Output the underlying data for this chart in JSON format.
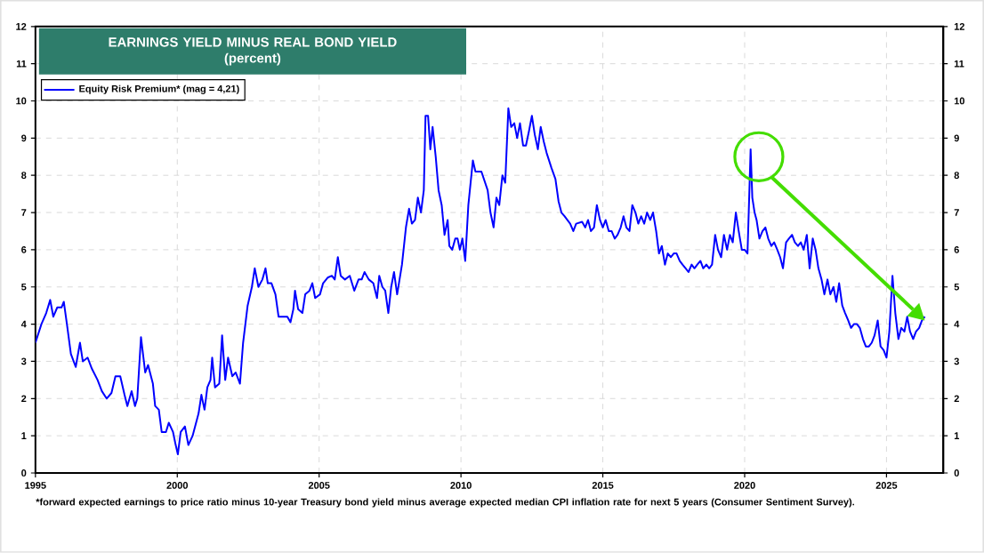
{
  "chart_data": {
    "type": "line",
    "title": "EARNINGS YIELD MINUS REAL BOND YIELD",
    "subtitle": "(percent)",
    "annotations": [
      "*forward expected earnings to price ratio minus 10-year Treasury bond yield minus average expected median CPI inflation rate for next 5 years (Consumer Sentiment Survey)."
    ],
    "xlim": [
      1995,
      2027
    ],
    "xticks": [
      1995,
      2000,
      2005,
      2010,
      2015,
      2020,
      2025
    ],
    "ylim": [
      0,
      12
    ],
    "yticks": [
      0,
      1,
      2,
      3,
      4,
      5,
      6,
      7,
      8,
      9,
      10,
      11,
      12
    ],
    "y2lim": [
      0,
      12
    ],
    "y2ticks": [
      0,
      1,
      2,
      3,
      4,
      5,
      6,
      7,
      8,
      9,
      10,
      11,
      12
    ],
    "grid": true,
    "legend": "top left",
    "marker": "none",
    "line_style": "solid",
    "series": [
      {
        "name": "Equity Risk Premium* (mag = 4,21)",
        "color": "#0000ff",
        "x": [
          1995.0,
          1995.21,
          1995.38,
          1995.52,
          1995.63,
          1995.77,
          1995.92,
          1996.0,
          1996.11,
          1996.25,
          1996.42,
          1996.57,
          1996.67,
          1996.84,
          1996.99,
          1997.19,
          1997.34,
          1997.51,
          1997.68,
          1997.82,
          1997.99,
          1998.14,
          1998.24,
          1998.39,
          1998.51,
          1998.59,
          1998.72,
          1998.87,
          1998.97,
          1999.14,
          1999.22,
          1999.35,
          1999.45,
          1999.6,
          1999.7,
          1999.85,
          1999.93,
          2000.02,
          2000.12,
          2000.27,
          2000.39,
          2000.54,
          2000.75,
          2000.85,
          2000.96,
          2001.06,
          2001.17,
          2001.23,
          2001.33,
          2001.48,
          2001.58,
          2001.69,
          2001.79,
          2001.94,
          2002.06,
          2002.21,
          2002.32,
          2002.48,
          2002.63,
          2002.73,
          2002.86,
          2003.0,
          2003.11,
          2003.19,
          2003.32,
          2003.46,
          2003.57,
          2003.74,
          2003.88,
          2003.99,
          2004.09,
          2004.15,
          2004.26,
          2004.41,
          2004.51,
          2004.66,
          2004.76,
          2004.86,
          2005.03,
          2005.14,
          2005.3,
          2005.45,
          2005.55,
          2005.66,
          2005.76,
          2005.91,
          2006.08,
          2006.24,
          2006.39,
          2006.5,
          2006.6,
          2006.75,
          2006.91,
          2007.04,
          2007.12,
          2007.23,
          2007.33,
          2007.44,
          2007.54,
          2007.64,
          2007.75,
          2007.92,
          2008.06,
          2008.17,
          2008.27,
          2008.38,
          2008.48,
          2008.59,
          2008.69,
          2008.75,
          2008.84,
          2008.92,
          2009.0,
          2009.11,
          2009.21,
          2009.32,
          2009.42,
          2009.53,
          2009.59,
          2009.69,
          2009.8,
          2009.88,
          2009.96,
          2010.05,
          2010.15,
          2010.26,
          2010.42,
          2010.51,
          2010.72,
          2010.94,
          2011.04,
          2011.15,
          2011.25,
          2011.35,
          2011.46,
          2011.56,
          2011.67,
          2011.77,
          2011.88,
          2011.98,
          2012.08,
          2012.19,
          2012.29,
          2012.4,
          2012.5,
          2012.6,
          2012.71,
          2012.81,
          2012.92,
          2013.02,
          2013.19,
          2013.33,
          2013.44,
          2013.54,
          2013.65,
          2013.75,
          2013.85,
          2013.96,
          2014.06,
          2014.27,
          2014.38,
          2014.48,
          2014.58,
          2014.69,
          2014.79,
          2014.9,
          2015.0,
          2015.1,
          2015.21,
          2015.31,
          2015.42,
          2015.52,
          2015.63,
          2015.73,
          2015.83,
          2015.94,
          2016.04,
          2016.15,
          2016.25,
          2016.35,
          2016.46,
          2016.56,
          2016.67,
          2016.77,
          2016.88,
          2016.98,
          2017.08,
          2017.19,
          2017.29,
          2017.4,
          2017.5,
          2017.6,
          2017.71,
          2017.81,
          2017.92,
          2018.02,
          2018.13,
          2018.23,
          2018.33,
          2018.44,
          2018.54,
          2018.65,
          2018.75,
          2018.85,
          2018.96,
          2019.06,
          2019.17,
          2019.27,
          2019.38,
          2019.48,
          2019.58,
          2019.69,
          2019.79,
          2019.9,
          2020.0,
          2020.1,
          2020.21,
          2020.27,
          2020.35,
          2020.42,
          2020.52,
          2020.63,
          2020.73,
          2020.83,
          2020.94,
          2021.04,
          2021.15,
          2021.25,
          2021.35,
          2021.46,
          2021.56,
          2021.67,
          2021.77,
          2021.88,
          2021.98,
          2022.08,
          2022.19,
          2022.29,
          2022.4,
          2022.5,
          2022.6,
          2022.71,
          2022.81,
          2022.92,
          2023.02,
          2023.13,
          2023.23,
          2023.33,
          2023.44,
          2023.54,
          2023.65,
          2023.75,
          2023.85,
          2023.96,
          2024.06,
          2024.17,
          2024.27,
          2024.38,
          2024.48,
          2024.58,
          2024.69,
          2024.79,
          2024.9,
          2025.0,
          2025.1,
          2025.21,
          2025.31,
          2025.42,
          2025.52,
          2025.63,
          2025.73,
          2025.83,
          2025.94,
          2026.04,
          2026.15,
          2026.25,
          2026.35
        ],
        "values": [
          3.5,
          4.0,
          4.3,
          4.65,
          4.2,
          4.45,
          4.45,
          4.6,
          4.0,
          3.2,
          2.85,
          3.5,
          3.0,
          3.1,
          2.8,
          2.5,
          2.2,
          2.0,
          2.15,
          2.6,
          2.6,
          2.1,
          1.8,
          2.2,
          1.8,
          2.0,
          3.65,
          2.7,
          2.9,
          2.4,
          1.8,
          1.7,
          1.1,
          1.1,
          1.35,
          1.1,
          0.8,
          0.5,
          1.1,
          1.25,
          0.75,
          1.0,
          1.6,
          2.1,
          1.7,
          2.3,
          2.5,
          3.1,
          2.3,
          2.4,
          3.7,
          2.5,
          3.1,
          2.6,
          2.7,
          2.4,
          3.5,
          4.5,
          5.0,
          5.5,
          5.0,
          5.2,
          5.5,
          5.1,
          5.1,
          4.8,
          4.2,
          4.2,
          4.2,
          4.05,
          4.4,
          4.9,
          4.4,
          4.3,
          4.8,
          4.9,
          5.1,
          4.7,
          4.8,
          5.1,
          5.25,
          5.3,
          5.2,
          5.8,
          5.3,
          5.2,
          5.3,
          4.9,
          5.2,
          5.2,
          5.4,
          5.2,
          5.1,
          4.7,
          5.3,
          5.0,
          4.9,
          4.3,
          5.0,
          5.4,
          4.8,
          5.6,
          6.6,
          7.1,
          6.7,
          6.8,
          7.4,
          7.0,
          7.6,
          9.6,
          9.6,
          8.7,
          9.3,
          8.5,
          7.6,
          7.2,
          6.4,
          6.8,
          6.1,
          6.0,
          6.3,
          6.3,
          6.0,
          6.3,
          5.7,
          7.2,
          8.4,
          8.1,
          8.1,
          7.6,
          7.0,
          6.6,
          7.4,
          7.2,
          8.0,
          7.8,
          9.8,
          9.3,
          9.4,
          9.0,
          9.4,
          8.8,
          8.8,
          9.2,
          9.6,
          9.1,
          8.7,
          9.3,
          8.9,
          8.6,
          8.2,
          7.9,
          7.3,
          7.0,
          6.9,
          6.8,
          6.7,
          6.5,
          6.7,
          6.75,
          6.6,
          6.8,
          6.5,
          6.6,
          7.2,
          6.8,
          6.6,
          6.8,
          6.5,
          6.5,
          6.3,
          6.4,
          6.6,
          6.9,
          6.6,
          6.5,
          7.2,
          7.0,
          6.7,
          6.9,
          6.7,
          7.0,
          6.8,
          7.0,
          6.5,
          5.9,
          6.1,
          5.6,
          5.9,
          5.8,
          5.9,
          5.9,
          5.7,
          5.6,
          5.5,
          5.4,
          5.6,
          5.5,
          5.6,
          5.7,
          5.5,
          5.6,
          5.5,
          5.6,
          6.4,
          6.0,
          5.8,
          6.4,
          6.0,
          6.4,
          6.2,
          7.0,
          6.5,
          6.0,
          6.0,
          5.9,
          8.7,
          7.4,
          7.0,
          6.8,
          6.3,
          6.5,
          6.6,
          6.3,
          6.1,
          6.2,
          6.0,
          5.8,
          5.5,
          6.2,
          6.3,
          6.4,
          6.2,
          6.1,
          6.2,
          6.0,
          6.4,
          5.5,
          6.3,
          6.0,
          5.5,
          5.2,
          4.8,
          5.2,
          4.8,
          5.0,
          4.6,
          5.1,
          4.5,
          4.3,
          4.1,
          3.9,
          4.0,
          4.0,
          3.9,
          3.6,
          3.4,
          3.4,
          3.5,
          3.7,
          4.1,
          3.4,
          3.3,
          3.1,
          3.8,
          5.3,
          4.3,
          3.6,
          3.9,
          3.8,
          4.2,
          3.8,
          3.6,
          3.8,
          3.9,
          4.1,
          4.2
        ]
      }
    ]
  }
}
